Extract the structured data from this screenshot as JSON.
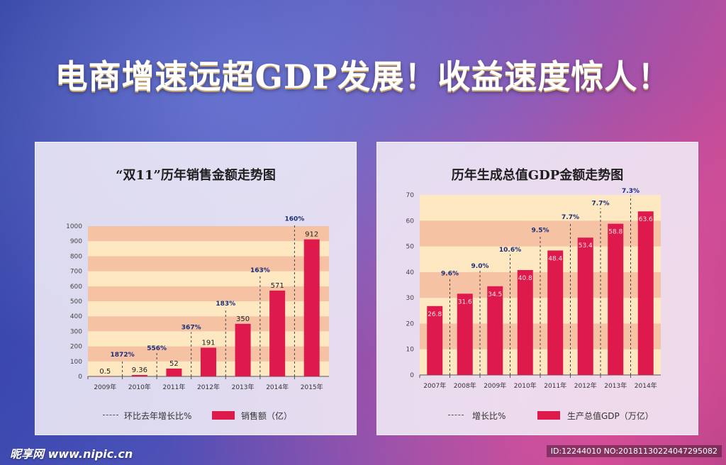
{
  "headline": "电商增速远超GDP发展！收益速度惊人！",
  "watermark_left": "昵享网 www.nipic.cn",
  "watermark_right": "ID:12244010 NO:20181130224047295082",
  "colors": {
    "bar": "#dd1a4b",
    "band_light": "#fde8c2",
    "band_dark": "#f6c2a4",
    "pct_text": "#1b2e7a"
  },
  "chart_data": [
    {
      "type": "bar",
      "title": "“双11”历年销售金额走势图",
      "categories": [
        "2009年",
        "2010年",
        "2011年",
        "2012年",
        "2013年",
        "2014年",
        "2015年"
      ],
      "values": [
        0.5,
        9.36,
        52,
        191,
        350,
        571,
        912
      ],
      "value_labels": [
        "0.5",
        "9.36",
        "52",
        "191",
        "350",
        "571",
        "912"
      ],
      "growth_labels": [
        "",
        "1872%",
        "556%",
        "367%",
        "183%",
        "163%",
        "160%"
      ],
      "ylim": [
        0,
        1000
      ],
      "yticks": [
        0,
        100,
        200,
        300,
        400,
        500,
        600,
        700,
        800,
        900,
        1000
      ],
      "grid": "alternating horizontal bands",
      "legend": {
        "line_label": "环比去年增长比%",
        "bar_label": "销售额（亿）",
        "placement": "bottom"
      }
    },
    {
      "type": "bar",
      "title": "历年生成总值GDP金额走势图",
      "categories": [
        "2007年",
        "2008年",
        "2009年",
        "2010年",
        "2011年",
        "2012年",
        "2013年",
        "2014年"
      ],
      "values": [
        26.8,
        31.6,
        34.5,
        40.8,
        48.4,
        53.4,
        58.8,
        63.6
      ],
      "value_labels": [
        "26.8",
        "31.6",
        "34.5",
        "40.8",
        "48.4",
        "53.4",
        "58.8",
        "63.6"
      ],
      "growth_labels": [
        "",
        "9.6%",
        "9.0%",
        "10.6%",
        "9.5%",
        "7.7%",
        "7.7%",
        "7.3%"
      ],
      "ylim": [
        0,
        70
      ],
      "yticks": [
        0,
        10,
        20,
        30,
        40,
        50,
        60,
        70
      ],
      "grid": "alternating horizontal bands",
      "legend": {
        "line_label": "增长比%",
        "bar_label": "生产总值GDP（万亿）",
        "placement": "bottom"
      }
    }
  ]
}
